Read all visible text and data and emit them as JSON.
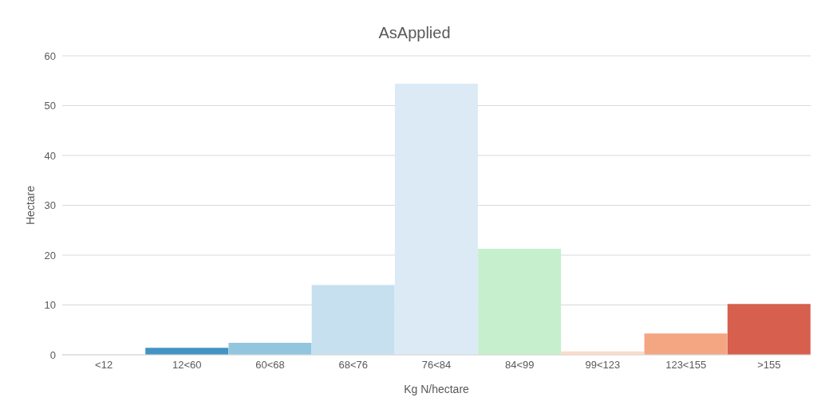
{
  "chart_data": {
    "type": "bar",
    "title": "AsApplied",
    "xlabel": "Kg N/hectare",
    "ylabel": "Hectare",
    "categories": [
      "<12",
      "12<60",
      "60<68",
      "68<76",
      "76<84",
      "84<99",
      "99<123",
      "123<155",
      ">155"
    ],
    "values": [
      0,
      1.4,
      2.4,
      14,
      54.4,
      21.3,
      0.7,
      4.3,
      10.2
    ],
    "colors": [
      "#4393c3",
      "#4393c3",
      "#92c5de",
      "#c6e0f0",
      "#dbeaf5",
      "#c6efce",
      "#fddbc7",
      "#f4a582",
      "#d6604d"
    ],
    "ylim": [
      0,
      60
    ],
    "yticks": [
      0,
      10,
      20,
      30,
      40,
      50,
      60
    ],
    "grid": "y",
    "legend": false
  }
}
